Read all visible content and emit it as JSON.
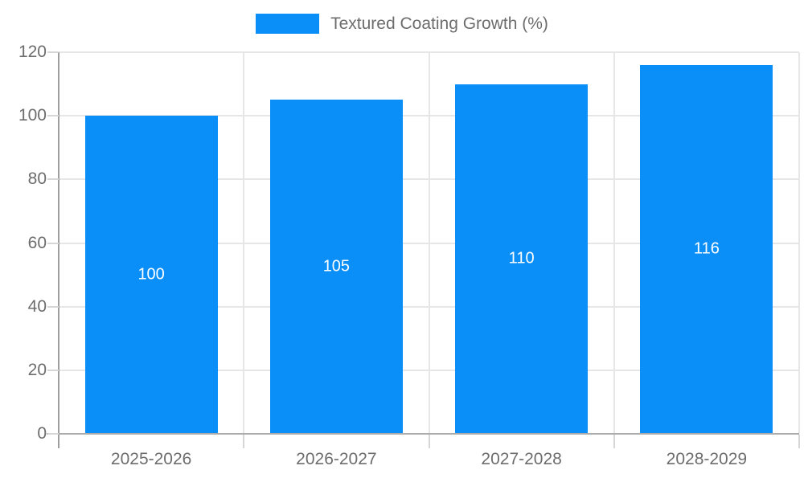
{
  "chart_data": {
    "type": "bar",
    "title": "Textured Coating Growth (%)",
    "categories": [
      "2025-2026",
      "2026-2027",
      "2027-2028",
      "2028-2029"
    ],
    "values": [
      100,
      105,
      110,
      116
    ],
    "value_labels": [
      "100",
      "105",
      "110",
      "116"
    ],
    "ytick_labels": [
      "0",
      "20",
      "40",
      "60",
      "80",
      "100",
      "120"
    ],
    "ylim": [
      0,
      120
    ],
    "ytick_step": 20,
    "grid": true,
    "legend_position": "top",
    "xlabel": "",
    "ylabel": "",
    "colors": {
      "bar": "#0a8ef8",
      "grid": "#e6e6e6",
      "axis": "#9e9e9e",
      "tick_text": "#6d6d6d",
      "value_text": "#ffffff"
    }
  }
}
